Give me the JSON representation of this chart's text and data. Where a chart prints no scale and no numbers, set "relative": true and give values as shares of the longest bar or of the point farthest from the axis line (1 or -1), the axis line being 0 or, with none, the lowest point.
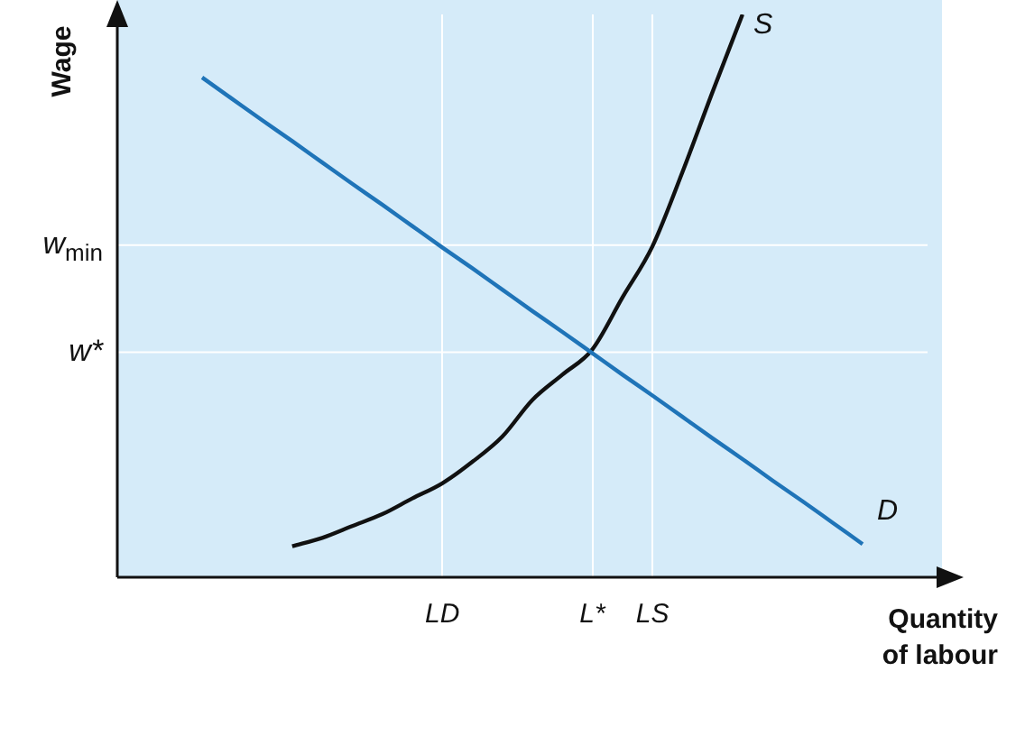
{
  "chart_data": {
    "type": "line",
    "relative": true,
    "xlabel": "Quantity of labour",
    "ylabel": "Wage",
    "categories": [
      null,
      null,
      null,
      null,
      null,
      null,
      null,
      null,
      "LD",
      null,
      null,
      null,
      null,
      "L*",
      null,
      "LS",
      null,
      null,
      null,
      null,
      null,
      null,
      null
    ],
    "series": [
      {
        "name": "D",
        "color": "#1f74b8",
        "values": [
          0.888,
          0.85,
          0.812,
          0.775,
          0.737,
          0.699,
          0.662,
          0.624,
          0.586,
          0.549,
          0.511,
          0.473,
          0.436,
          0.398,
          0.36,
          0.323,
          0.285,
          0.247,
          0.21,
          0.172,
          0.135,
          0.097,
          0.059
        ]
      },
      {
        "name": "S",
        "color": "#111111",
        "values": [
          null,
          null,
          null,
          0.055,
          0.07,
          0.091,
          0.112,
          0.14,
          0.167,
          0.205,
          0.25,
          0.315,
          0.36,
          0.405,
          0.497,
          0.588,
          0.72,
          0.862,
          1,
          null,
          null,
          null,
          null
        ]
      }
    ],
    "ref_lines": [
      {
        "axis": "y",
        "value": 0.59,
        "label": "w$_{min}$",
        "color": "#ffffff"
      },
      {
        "axis": "y",
        "value": 0.4,
        "label": "w*",
        "color": "#ffffff"
      }
    ],
    "marker": "none",
    "line_style": "solid",
    "grid": "x",
    "legend": false
  }
}
